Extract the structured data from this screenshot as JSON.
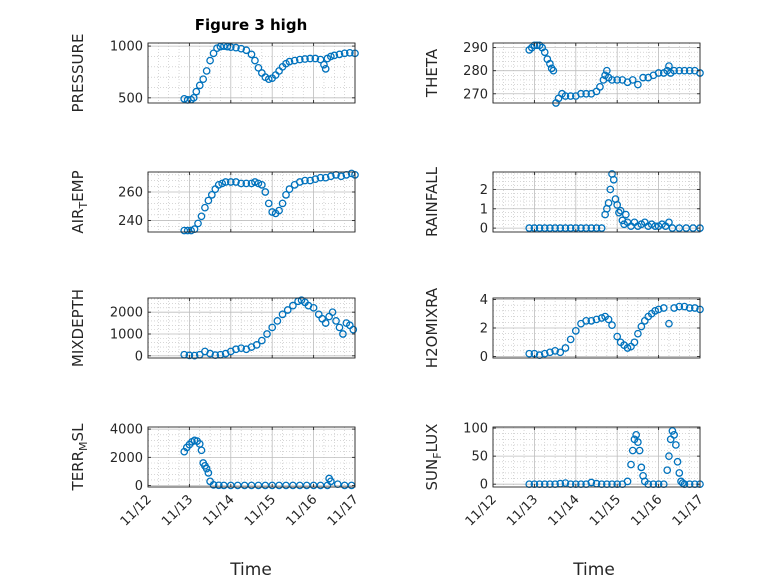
{
  "figure": {
    "title": "Figure 3 high"
  },
  "colors": {
    "marker": "#0072BD",
    "axis": "#262626",
    "grid": "#bdbdbd"
  },
  "chart_data": [
    {
      "type": "scatter",
      "title": "Figure 3 high",
      "ylabel": "PRESSURE",
      "xlabel": "",
      "xlim": [
        "11/12",
        "11/17"
      ],
      "ylim": [
        450,
        1030
      ],
      "yticks": [
        500,
        1000
      ],
      "x": [
        "11/12 21:00",
        "11/12 23:00",
        "11/13 01:00",
        "11/13 02:30",
        "11/13 04:00",
        "11/13 06:00",
        "11/13 08:00",
        "11/13 10:00",
        "11/13 12:00",
        "11/13 14:00",
        "11/13 16:00",
        "11/13 18:00",
        "11/13 20:00",
        "11/13 22:00",
        "11/14 00:00",
        "11/14 03:00",
        "11/14 06:00",
        "11/14 09:00",
        "11/14 12:00",
        "11/14 14:00",
        "11/14 16:00",
        "11/14 18:00",
        "11/14 20:00",
        "11/14 22:00",
        "11/15 00:00",
        "11/15 02:00",
        "11/15 04:00",
        "11/15 06:00",
        "11/15 08:00",
        "11/15 10:00",
        "11/15 13:00",
        "11/15 16:00",
        "11/15 19:00",
        "11/15 22:00",
        "11/16 01:00",
        "11/16 04:00",
        "11/16 06:00",
        "11/16 07:00",
        "11/16 08:00",
        "11/16 10:00",
        "11/16 12:00",
        "11/16 15:00",
        "11/16 18:00",
        "11/16 21:00",
        "11/17 00:00"
      ],
      "y": [
        490,
        480,
        482,
        500,
        560,
        620,
        680,
        760,
        860,
        930,
        980,
        995,
        1000,
        995,
        990,
        985,
        975,
        960,
        920,
        860,
        790,
        740,
        700,
        680,
        690,
        720,
        760,
        800,
        830,
        850,
        860,
        870,
        875,
        880,
        880,
        870,
        820,
        780,
        880,
        900,
        910,
        920,
        930,
        935,
        930
      ]
    },
    {
      "type": "scatter",
      "ylabel": "THETA",
      "xlabel": "",
      "xlim": [
        "11/12",
        "11/17"
      ],
      "ylim": [
        266,
        292
      ],
      "yticks": [
        270,
        280,
        290
      ],
      "x": [
        "11/12 21:00",
        "11/12 22:30",
        "11/13 00:00",
        "11/13 01:30",
        "11/13 03:00",
        "11/13 04:30",
        "11/13 06:00",
        "11/13 07:30",
        "11/13 09:00",
        "11/13 10:00",
        "11/13 11:00",
        "11/13 12:30",
        "11/13 14:00",
        "11/13 16:00",
        "11/13 18:00",
        "11/13 21:00",
        "11/14 00:00",
        "11/14 03:00",
        "11/14 06:00",
        "11/14 09:00",
        "11/14 12:00",
        "11/14 14:00",
        "11/14 16:00",
        "11/14 17:00",
        "11/14 18:00",
        "11/14 19:00",
        "11/14 21:00",
        "11/15 00:00",
        "11/15 03:00",
        "11/15 06:00",
        "11/15 09:00",
        "11/15 12:00",
        "11/15 15:00",
        "11/15 18:00",
        "11/15 21:00",
        "11/16 00:00",
        "11/16 03:00",
        "11/16 05:00",
        "11/16 06:00",
        "11/16 07:00",
        "11/16 09:00",
        "11/16 12:00",
        "11/16 15:00",
        "11/16 18:00",
        "11/16 21:00",
        "11/17 00:00"
      ],
      "y": [
        289,
        290,
        291,
        291,
        291,
        290,
        288,
        285,
        283,
        281,
        280,
        266,
        268,
        270,
        269,
        269,
        269,
        270,
        270,
        270,
        271,
        273,
        276,
        278,
        280,
        277,
        276,
        276,
        276,
        275,
        276,
        274,
        277,
        277,
        278,
        279,
        279,
        280,
        282,
        279,
        280,
        280,
        280,
        280,
        280,
        279
      ]
    },
    {
      "type": "scatter",
      "ylabel": "AIR_TEMP",
      "xlabel": "",
      "xlim": [
        "11/12",
        "11/17"
      ],
      "ylim": [
        232,
        274
      ],
      "yticks": [
        240,
        260
      ],
      "x": [
        "11/12 21:00",
        "11/12 23:00",
        "11/13 01:00",
        "11/13 03:00",
        "11/13 05:00",
        "11/13 07:00",
        "11/13 09:00",
        "11/13 11:00",
        "11/13 13:00",
        "11/13 15:00",
        "11/13 17:00",
        "11/13 19:00",
        "11/13 21:00",
        "11/14 00:00",
        "11/14 03:00",
        "11/14 06:00",
        "11/14 09:00",
        "11/14 12:00",
        "11/14 14:00",
        "11/14 16:00",
        "11/14 18:00",
        "11/14 20:00",
        "11/14 22:00",
        "11/15 00:00",
        "11/15 02:00",
        "11/15 04:00",
        "11/15 06:00",
        "11/15 08:00",
        "11/15 10:00",
        "11/15 13:00",
        "11/15 16:00",
        "11/15 19:00",
        "11/15 22:00",
        "11/16 01:00",
        "11/16 04:00",
        "11/16 07:00",
        "11/16 10:00",
        "11/16 13:00",
        "11/16 16:00",
        "11/16 19:00",
        "11/16 22:00",
        "11/17 00:00"
      ],
      "y": [
        233,
        233,
        233,
        234,
        238,
        243,
        249,
        254,
        258,
        262,
        265,
        266,
        267,
        267,
        267,
        266,
        266,
        266,
        267,
        266,
        265,
        260,
        252,
        246,
        245,
        247,
        252,
        258,
        262,
        265,
        267,
        268,
        268,
        269,
        270,
        270,
        271,
        272,
        271,
        272,
        273,
        272
      ]
    },
    {
      "type": "scatter",
      "ylabel": "RAINFALL",
      "xlabel": "",
      "xlim": [
        "11/12",
        "11/17"
      ],
      "ylim": [
        -0.2,
        2.9
      ],
      "yticks": [
        0,
        1,
        2
      ],
      "x": [
        "11/12 21:00",
        "11/13 00:00",
        "11/13 03:00",
        "11/13 06:00",
        "11/13 09:00",
        "11/13 12:00",
        "11/13 15:00",
        "11/13 18:00",
        "11/13 21:00",
        "11/14 00:00",
        "11/14 03:00",
        "11/14 06:00",
        "11/14 09:00",
        "11/14 12:00",
        "11/14 15:00",
        "11/14 17:00",
        "11/14 18:00",
        "11/14 19:00",
        "11/14 20:00",
        "11/14 21:00",
        "11/14 22:00",
        "11/14 23:00",
        "11/15 00:00",
        "11/15 01:00",
        "11/15 02:00",
        "11/15 03:00",
        "11/15 04:00",
        "11/15 05:00",
        "11/15 06:00",
        "11/15 08:00",
        "11/15 10:00",
        "11/15 12:00",
        "11/15 14:00",
        "11/15 16:00",
        "11/15 18:00",
        "11/15 20:00",
        "11/15 22:00",
        "11/16 00:00",
        "11/16 02:00",
        "11/16 04:00",
        "11/16 06:00",
        "11/16 08:00",
        "11/16 12:00",
        "11/16 16:00",
        "11/16 20:00",
        "11/17 00:00"
      ],
      "y": [
        0,
        0,
        0,
        0,
        0,
        0,
        0,
        0,
        0,
        0,
        0,
        0,
        0,
        0,
        0,
        0.7,
        1.0,
        1.3,
        2.0,
        2.8,
        2.5,
        1.5,
        1.2,
        0.8,
        0.9,
        0.4,
        0.2,
        0.7,
        0.3,
        0.1,
        0.3,
        0.1,
        0.2,
        0.3,
        0.1,
        0.2,
        0.1,
        0.1,
        0.2,
        0.1,
        0.3,
        0,
        0,
        0,
        0,
        0
      ]
    },
    {
      "type": "scatter",
      "ylabel": "MIXDEPTH",
      "xlabel": "",
      "xlim": [
        "11/12",
        "11/17"
      ],
      "ylim": [
        -100,
        2650
      ],
      "yticks": [
        0,
        1000,
        2000
      ],
      "x": [
        "11/12 21:00",
        "11/13 00:00",
        "11/13 03:00",
        "11/13 06:00",
        "11/13 09:00",
        "11/13 12:00",
        "11/13 15:00",
        "11/13 18:00",
        "11/13 21:00",
        "11/14 00:00",
        "11/14 03:00",
        "11/14 06:00",
        "11/14 09:00",
        "11/14 12:00",
        "11/14 15:00",
        "11/14 18:00",
        "11/14 21:00",
        "11/15 00:00",
        "11/15 03:00",
        "11/15 06:00",
        "11/15 09:00",
        "11/15 12:00",
        "11/15 15:00",
        "11/15 17:00",
        "11/15 19:00",
        "11/15 21:00",
        "11/16 00:00",
        "11/16 03:00",
        "11/16 05:00",
        "11/16 07:00",
        "11/16 09:00",
        "11/16 11:00",
        "11/16 13:00",
        "11/16 15:00",
        "11/16 17:00",
        "11/16 19:00",
        "11/16 21:00",
        "11/16 23:00"
      ],
      "y": [
        50,
        20,
        10,
        50,
        200,
        100,
        30,
        50,
        100,
        200,
        300,
        350,
        300,
        400,
        500,
        700,
        1000,
        1300,
        1600,
        1900,
        2100,
        2300,
        2500,
        2550,
        2450,
        2300,
        2200,
        1900,
        1700,
        1500,
        1800,
        2000,
        1600,
        1300,
        1000,
        1500,
        1400,
        1200
      ]
    },
    {
      "type": "scatter",
      "ylabel": "H2OMIXRA",
      "xlabel": "",
      "xlim": [
        "11/12",
        "11/17"
      ],
      "ylim": [
        -0.1,
        4.1
      ],
      "yticks": [
        0,
        2,
        4
      ],
      "x": [
        "11/12 21:00",
        "11/13 00:00",
        "11/13 03:00",
        "11/13 06:00",
        "11/13 09:00",
        "11/13 12:00",
        "11/13 15:00",
        "11/13 18:00",
        "11/13 21:00",
        "11/14 00:00",
        "11/14 03:00",
        "11/14 06:00",
        "11/14 09:00",
        "11/14 12:00",
        "11/14 15:00",
        "11/14 17:00",
        "11/14 19:00",
        "11/14 21:00",
        "11/15 00:00",
        "11/15 02:00",
        "11/15 04:00",
        "11/15 06:00",
        "11/15 08:00",
        "11/15 10:00",
        "11/15 12:00",
        "11/15 14:00",
        "11/15 16:00",
        "11/15 18:00",
        "11/15 20:00",
        "11/15 22:00",
        "11/16 00:00",
        "11/16 03:00",
        "11/16 06:00",
        "11/16 09:00",
        "11/16 12:00",
        "11/16 15:00",
        "11/16 18:00",
        "11/16 21:00",
        "11/17 00:00"
      ],
      "y": [
        0.2,
        0.2,
        0.1,
        0.2,
        0.3,
        0.4,
        0.3,
        0.6,
        1.2,
        1.8,
        2.3,
        2.5,
        2.5,
        2.6,
        2.7,
        2.8,
        2.6,
        2.2,
        1.4,
        1.0,
        0.8,
        0.6,
        0.7,
        1.0,
        1.6,
        2.1,
        2.5,
        2.8,
        3.0,
        3.2,
        3.3,
        3.4,
        2.3,
        3.4,
        3.5,
        3.5,
        3.4,
        3.4,
        3.3
      ]
    },
    {
      "type": "scatter",
      "ylabel": "TERR_MSL",
      "xlabel": "Time",
      "xlim": [
        "11/12",
        "11/17"
      ],
      "ylim": [
        -100,
        4150
      ],
      "yticks": [
        0,
        2000,
        4000
      ],
      "xticks": [
        "11/12",
        "11/13",
        "11/14",
        "11/15",
        "11/16",
        "11/17"
      ],
      "x": [
        "11/12 21:00",
        "11/12 22:30",
        "11/13 00:00",
        "11/13 01:30",
        "11/13 03:00",
        "11/13 04:30",
        "11/13 06:00",
        "11/13 07:00",
        "11/13 08:00",
        "11/13 09:00",
        "11/13 10:00",
        "11/13 11:00",
        "11/13 12:00",
        "11/13 14:00",
        "11/13 17:00",
        "11/13 20:00",
        "11/14 00:00",
        "11/14 04:00",
        "11/14 08:00",
        "11/14 12:00",
        "11/14 16:00",
        "11/14 20:00",
        "11/15 00:00",
        "11/15 04:00",
        "11/15 08:00",
        "11/15 12:00",
        "11/15 16:00",
        "11/15 20:00",
        "11/16 00:00",
        "11/16 04:00",
        "11/16 08:00",
        "11/16 09:00",
        "11/16 10:00",
        "11/16 14:00",
        "11/16 18:00",
        "11/16 22:00"
      ],
      "y": [
        2400,
        2700,
        2900,
        3100,
        3200,
        3150,
        2950,
        2500,
        1600,
        1400,
        1200,
        900,
        300,
        50,
        20,
        10,
        10,
        10,
        10,
        10,
        10,
        10,
        10,
        10,
        10,
        10,
        10,
        10,
        10,
        10,
        10,
        500,
        300,
        100,
        10,
        10
      ]
    },
    {
      "type": "scatter",
      "ylabel": "SUN_FLUX",
      "xlabel": "Time",
      "xlim": [
        "11/12",
        "11/17"
      ],
      "ylim": [
        -5,
        102
      ],
      "yticks": [
        0,
        50,
        100
      ],
      "xticks": [
        "11/12",
        "11/13",
        "11/14",
        "11/15",
        "11/16",
        "11/17"
      ],
      "x": [
        "11/12 21:00",
        "11/13 00:00",
        "11/13 03:00",
        "11/13 06:00",
        "11/13 09:00",
        "11/13 12:00",
        "11/13 15:00",
        "11/13 18:00",
        "11/13 21:00",
        "11/14 00:00",
        "11/14 03:00",
        "11/14 06:00",
        "11/14 09:00",
        "11/14 12:00",
        "11/14 15:00",
        "11/14 18:00",
        "11/14 21:00",
        "11/15 00:00",
        "11/15 03:00",
        "11/15 06:00",
        "11/15 08:00",
        "11/15 09:00",
        "11/15 10:00",
        "11/15 11:00",
        "11/15 12:00",
        "11/15 13:00",
        "11/15 14:00",
        "11/15 15:00",
        "11/15 16:00",
        "11/15 18:00",
        "11/15 21:00",
        "11/16 00:00",
        "11/16 03:00",
        "11/16 05:00",
        "11/16 06:00",
        "11/16 07:00",
        "11/16 08:00",
        "11/16 09:00",
        "11/16 10:00",
        "11/16 11:00",
        "11/16 12:00",
        "11/16 13:00",
        "11/16 14:00",
        "11/16 15:00",
        "11/16 18:00",
        "11/16 21:00",
        "11/17 00:00"
      ],
      "y": [
        0,
        0,
        0,
        0,
        0,
        0,
        1,
        2,
        0,
        0,
        0,
        0,
        3,
        1,
        0,
        0,
        0,
        0,
        0,
        5,
        35,
        60,
        80,
        88,
        75,
        60,
        30,
        15,
        5,
        0,
        0,
        0,
        0,
        25,
        50,
        80,
        95,
        88,
        70,
        40,
        20,
        5,
        2,
        0,
        0,
        0,
        0
      ]
    }
  ],
  "axes_display": [
    {
      "id": "pressure",
      "ylabel": "PRESSURE",
      "ylabel_sub": "",
      "ylabel_tail": "",
      "ytick_labels": [
        "500",
        "1000"
      ],
      "xtick_labels": []
    },
    {
      "id": "theta",
      "ylabel": "THETA",
      "ylabel_sub": "",
      "ylabel_tail": "",
      "ytick_labels": [
        "270",
        "280",
        "290"
      ],
      "xtick_labels": []
    },
    {
      "id": "air-temp",
      "ylabel": "AIR",
      "ylabel_sub": "T",
      "ylabel_tail": "EMP",
      "ytick_labels": [
        "240",
        "260"
      ],
      "xtick_labels": []
    },
    {
      "id": "rainfall",
      "ylabel": "RAINFALL",
      "ylabel_sub": "",
      "ylabel_tail": "",
      "ytick_labels": [
        "0",
        "1",
        "2"
      ],
      "xtick_labels": []
    },
    {
      "id": "mixdepth",
      "ylabel": "MIXDEPTH",
      "ylabel_sub": "",
      "ylabel_tail": "",
      "ytick_labels": [
        "0",
        "1000",
        "2000"
      ],
      "xtick_labels": []
    },
    {
      "id": "h2omixra",
      "ylabel": "H2OMIXRA",
      "ylabel_sub": "",
      "ylabel_tail": "",
      "ytick_labels": [
        "0",
        "2",
        "4"
      ],
      "xtick_labels": []
    },
    {
      "id": "terr-msl",
      "ylabel": "TERR",
      "ylabel_sub": "M",
      "ylabel_tail": "SL",
      "ytick_labels": [
        "0",
        "2000",
        "4000"
      ],
      "xtick_labels": [
        "11/12",
        "11/13",
        "11/14",
        "11/15",
        "11/16",
        "11/17"
      ]
    },
    {
      "id": "sun-flux",
      "ylabel": "SUN",
      "ylabel_sub": "F",
      "ylabel_tail": "LUX",
      "ytick_labels": [
        "0",
        "50",
        "100"
      ],
      "xtick_labels": [
        "11/12",
        "11/13",
        "11/14",
        "11/15",
        "11/16",
        "11/17"
      ]
    }
  ],
  "xlabels": [
    "Time",
    "Time"
  ]
}
